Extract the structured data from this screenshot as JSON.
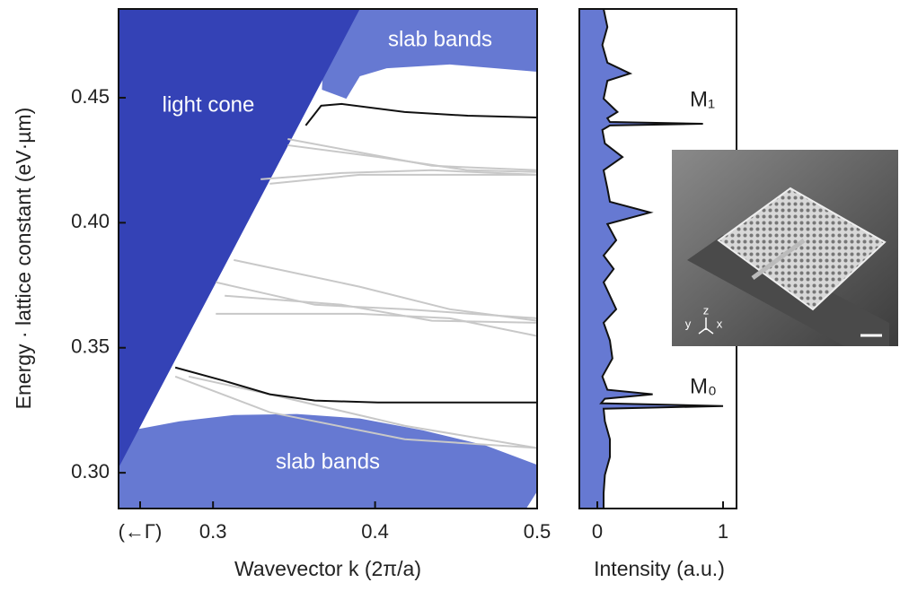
{
  "chart_data": [
    {
      "type": "band-diagram",
      "xlabel": "Wavevector k (2π/a)",
      "ylabel": "Energy · lattice constant (eV·µm)",
      "xlim": [
        0.2417,
        0.5
      ],
      "ylim": [
        0.2857,
        0.4855
      ],
      "xticks": [
        {
          "value": 0.255,
          "label": "(←Γ)"
        },
        0.3,
        0.4,
        0.5
      ],
      "yticks": [
        {
          "value": 0.3,
          "label": "0.30"
        },
        0.35,
        {
          "value": 0.4,
          "label": "0.40"
        },
        0.45
      ],
      "annotations": [
        "light cone",
        "slab bands",
        "slab bands"
      ],
      "regions": [
        {
          "color": "#6679d2",
          "x": [
            0.3694,
            0.5,
            0.5,
            0.4461,
            0.4072,
            0.3906,
            0.3822,
            0.3672
          ],
          "values": [
            0.4855,
            0.4855,
            0.4604,
            0.4633,
            0.4618,
            0.4586,
            0.4496,
            0.4532
          ]
        },
        {
          "color": "#6679d2",
          "x": [
            0.2417,
            0.2794,
            0.3128,
            0.3517,
            0.3906,
            0.4294,
            0.4683,
            0.5,
            0.5,
            0.4933,
            0.2417
          ],
          "values": [
            0.316,
            0.3206,
            0.3231,
            0.3235,
            0.3217,
            0.317,
            0.3109,
            0.3032,
            0.2925,
            0.2857,
            0.2857
          ]
        },
        {
          "color": "#3442b6",
          "x": [
            0.2417,
            0.3906,
            0.2417
          ],
          "values": [
            0.4855,
            0.4855,
            0.302
          ]
        }
      ],
      "series": [
        {
          "color": "#c8c8c8",
          "x": [
            0.3461,
            0.3906,
            0.435,
            0.5
          ],
          "values": [
            0.4335,
            0.4281,
            0.4228,
            0.421
          ]
        },
        {
          "color": "#c8c8c8",
          "x": [
            0.3461,
            0.4017,
            0.4572,
            0.5
          ],
          "values": [
            0.431,
            0.4263,
            0.421,
            0.4203
          ]
        },
        {
          "color": "#c8c8c8",
          "x": [
            0.3294,
            0.3794,
            0.435,
            0.5
          ],
          "values": [
            0.4174,
            0.4199,
            0.421,
            0.4192
          ]
        },
        {
          "color": "#c8c8c8",
          "x": [
            0.335,
            0.3906,
            0.4461,
            0.5
          ],
          "values": [
            0.4156,
            0.4192,
            0.4192,
            0.4192
          ]
        },
        {
          "color": "#c8c8c8",
          "x": [
            0.3128,
            0.3906,
            0.4461,
            0.5
          ],
          "values": [
            0.3851,
            0.3744,
            0.3654,
            0.3608
          ]
        },
        {
          "color": "#c8c8c8",
          "x": [
            0.3017,
            0.3628,
            0.4183,
            0.5
          ],
          "values": [
            0.3762,
            0.3672,
            0.3654,
            0.3618
          ]
        },
        {
          "color": "#c8c8c8",
          "x": [
            0.3072,
            0.3794,
            0.435,
            0.5
          ],
          "values": [
            0.3708,
            0.3672,
            0.3608,
            0.36
          ]
        },
        {
          "color": "#c8c8c8",
          "x": [
            0.3017,
            0.3906,
            0.4461,
            0.5
          ],
          "values": [
            0.3636,
            0.3636,
            0.3618,
            0.3547
          ]
        },
        {
          "color": "#c8c8c8",
          "x": [
            0.285,
            0.335,
            0.4183,
            0.5
          ],
          "values": [
            0.3385,
            0.3314,
            0.3188,
            0.3099
          ]
        },
        {
          "color": "#c8c8c8",
          "x": [
            0.2767,
            0.335,
            0.4183,
            0.5
          ],
          "values": [
            0.3385,
            0.3242,
            0.3134,
            0.3099
          ]
        },
        {
          "color": "#111111",
          "x": [
            0.3572,
            0.3667,
            0.3794,
            0.4183,
            0.4572,
            0.5
          ],
          "values": [
            0.4389,
            0.4468,
            0.4475,
            0.4443,
            0.4428,
            0.4421
          ]
        },
        {
          "color": "#111111",
          "x": [
            0.2767,
            0.3072,
            0.335,
            0.3628,
            0.4017,
            0.5
          ],
          "values": [
            0.3421,
            0.3367,
            0.3314,
            0.3289,
            0.3281,
            0.3281
          ]
        }
      ]
    },
    {
      "type": "spectrum",
      "xlabel": "Intensity (a.u.)",
      "xlim": [
        -0.143,
        1.107
      ],
      "ylim": [
        0.2857,
        0.4855
      ],
      "xticks": [
        0,
        1
      ],
      "annotations": [
        "M₁",
        "M₀"
      ],
      "color": "#6679d2",
      "x": [
        0.05,
        0.08,
        0.04,
        0.08,
        0.26,
        0.08,
        0.05,
        0.16,
        0.08,
        0.1,
        0.84,
        0.1,
        0.04,
        0.06,
        0.2,
        0.05,
        0.08,
        0.1,
        0.42,
        0.08,
        0.15,
        0.05,
        0.13,
        0.05,
        0.1,
        0.15,
        0.05,
        0.1,
        0.12,
        0.04,
        0.08,
        0.44,
        0.06,
        0.03,
        1.0,
        0.05,
        0.06,
        0.1,
        0.1,
        0.06,
        0.05,
        0.05
      ],
      "y": [
        0.4855,
        0.4783,
        0.4711,
        0.464,
        0.4597,
        0.4568,
        0.4496,
        0.4443,
        0.4418,
        0.4403,
        0.4396,
        0.4389,
        0.4371,
        0.4317,
        0.4263,
        0.421,
        0.4138,
        0.4084,
        0.4041,
        0.3995,
        0.393,
        0.3869,
        0.3815,
        0.3762,
        0.3708,
        0.3654,
        0.36,
        0.3529,
        0.3457,
        0.3385,
        0.3332,
        0.3314,
        0.3296,
        0.3278,
        0.3267,
        0.3256,
        0.3206,
        0.3134,
        0.3063,
        0.2991,
        0.2919,
        0.2857
      ]
    },
    {
      "type": "image",
      "axis_labels": [
        "z",
        "y",
        "x"
      ]
    }
  ]
}
